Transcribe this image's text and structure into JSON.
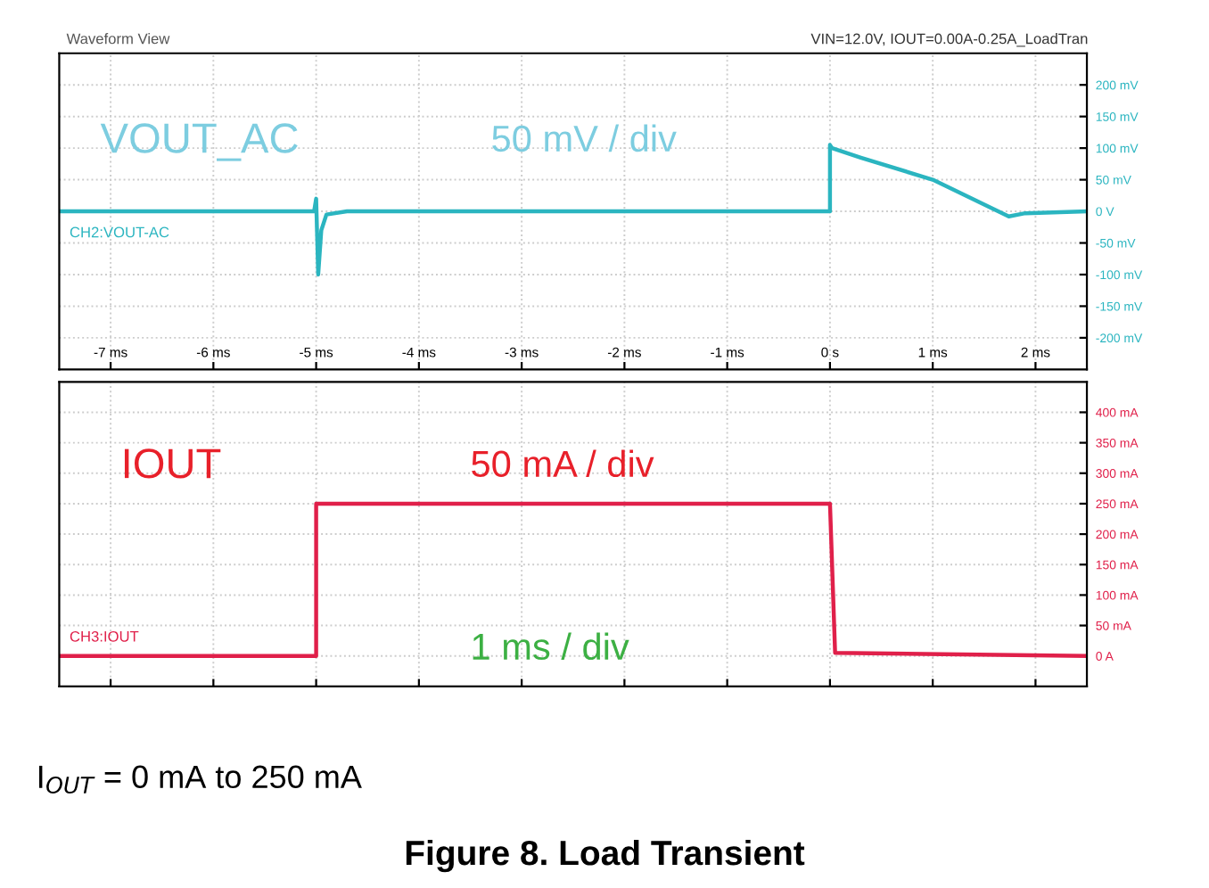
{
  "chart_data": [
    {
      "type": "line",
      "xlim": [
        -7.5,
        2.5
      ],
      "xticks": [
        {
          "value": -7,
          "label": "-7 ms"
        },
        {
          "value": -6,
          "label": "-6 ms"
        },
        {
          "value": -5,
          "label": "-5 ms"
        },
        {
          "value": -4,
          "label": "-4 ms"
        },
        {
          "value": -3,
          "label": "-3 ms"
        },
        {
          "value": -2,
          "label": "-2 ms"
        },
        {
          "value": -1,
          "label": "-1 ms"
        },
        {
          "value": 0,
          "label": "0 s"
        },
        {
          "value": 1,
          "label": "1 ms"
        },
        {
          "value": 2,
          "label": "2 ms"
        }
      ],
      "ylim": [
        -250,
        250
      ],
      "yticks": [
        {
          "value": 200,
          "label": "200 mV"
        },
        {
          "value": 150,
          "label": "150 mV"
        },
        {
          "value": 100,
          "label": "100 mV"
        },
        {
          "value": 50,
          "label": "50 mV"
        },
        {
          "value": 0,
          "label": "0 V"
        },
        {
          "value": -50,
          "label": "-50 mV"
        },
        {
          "value": -100,
          "label": "-100 mV"
        },
        {
          "value": -150,
          "label": "-150 mV"
        },
        {
          "value": -200,
          "label": "-200 mV"
        }
      ],
      "grid": true,
      "legend": false,
      "marker": "none",
      "line_style": "solid",
      "series": [
        {
          "color": "#2bb5c0",
          "x": [
            -7.5,
            -5.02,
            -5.0,
            -4.98,
            -4.95,
            -4.9,
            -4.7,
            0,
            0.0,
            0.02,
            0.3,
            1.0,
            1.74,
            1.9,
            2.5
          ],
          "values": [
            0,
            0,
            20,
            -100,
            -30,
            -5,
            0,
            0,
            105,
            100,
            85,
            50,
            -8,
            -3,
            0
          ]
        }
      ],
      "annotations": [
        "Waveform View",
        "VIN=12.0V, IOUT=0.00A-0.25A_LoadTran",
        "VOUT_AC",
        "50 mV / div",
        "CH2:VOUT-AC"
      ]
    },
    {
      "type": "line",
      "xlim": [
        -7.5,
        2.5
      ],
      "xticks": [
        {
          "value": -7,
          "label": null
        },
        {
          "value": -6,
          "label": null
        },
        {
          "value": -5,
          "label": null
        },
        {
          "value": -4,
          "label": null
        },
        {
          "value": -3,
          "label": null
        },
        {
          "value": -2,
          "label": null
        },
        {
          "value": -1,
          "label": null
        },
        {
          "value": 0,
          "label": null
        },
        {
          "value": 1,
          "label": null
        },
        {
          "value": 2,
          "label": null
        }
      ],
      "ylim": [
        -50,
        450
      ],
      "yticks": [
        {
          "value": 400,
          "label": "400 mA"
        },
        {
          "value": 350,
          "label": "350 mA"
        },
        {
          "value": 300,
          "label": "300 mA"
        },
        {
          "value": 250,
          "label": "250 mA"
        },
        {
          "value": 200,
          "label": "200 mA"
        },
        {
          "value": 150,
          "label": "150 mA"
        },
        {
          "value": 100,
          "label": "100 mA"
        },
        {
          "value": 50,
          "label": "50 mA"
        },
        {
          "value": 0,
          "label": "0 A"
        }
      ],
      "tick_labels": "y",
      "grid": true,
      "legend": false,
      "marker": "none",
      "line_style": "solid",
      "series": [
        {
          "color": "#e0204a",
          "x": [
            -7.5,
            -5.0,
            -5.0,
            0.0,
            0.05,
            2.5
          ],
          "values": [
            0,
            0,
            250,
            250,
            5,
            0
          ]
        }
      ],
      "title": "Figure 8. Load Transient",
      "annotations": [
        "IOUT",
        "50 mA / div",
        "1 ms / div",
        "CH3:IOUT",
        "I$_{OUT}$ = 0 mA to 250 mA"
      ]
    }
  ]
}
